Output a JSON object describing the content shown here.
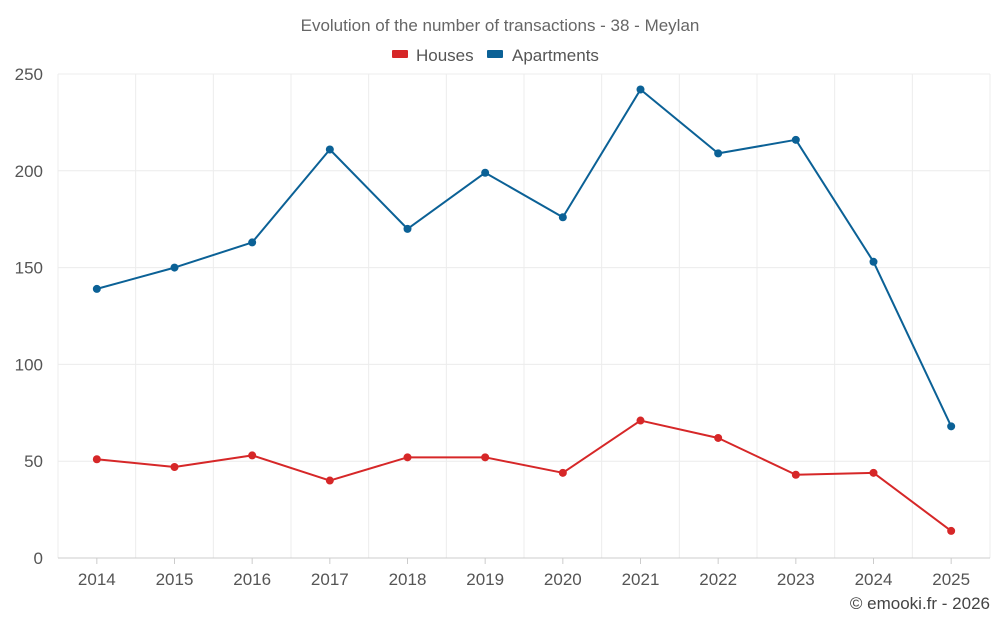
{
  "chart_data": {
    "type": "line",
    "title": "Evolution of the number of transactions - 38 - Meylan",
    "categories": [
      "2014",
      "2015",
      "2016",
      "2017",
      "2018",
      "2019",
      "2020",
      "2021",
      "2022",
      "2023",
      "2024",
      "2025"
    ],
    "series": [
      {
        "name": "Houses",
        "color": "#d62728",
        "values": [
          51,
          47,
          53,
          40,
          52,
          52,
          44,
          71,
          62,
          43,
          44,
          14
        ]
      },
      {
        "name": "Apartments",
        "color": "#0b6196",
        "values": [
          139,
          150,
          163,
          211,
          170,
          199,
          176,
          242,
          209,
          216,
          153,
          68
        ]
      }
    ],
    "yticks": [
      "0",
      "50",
      "100",
      "150",
      "200",
      "250"
    ],
    "ylim": [
      0,
      250
    ],
    "xlabel": "",
    "ylabel": "",
    "grid": true,
    "legend_position": "top-center"
  },
  "credit": "© emooki.fr - 2026"
}
